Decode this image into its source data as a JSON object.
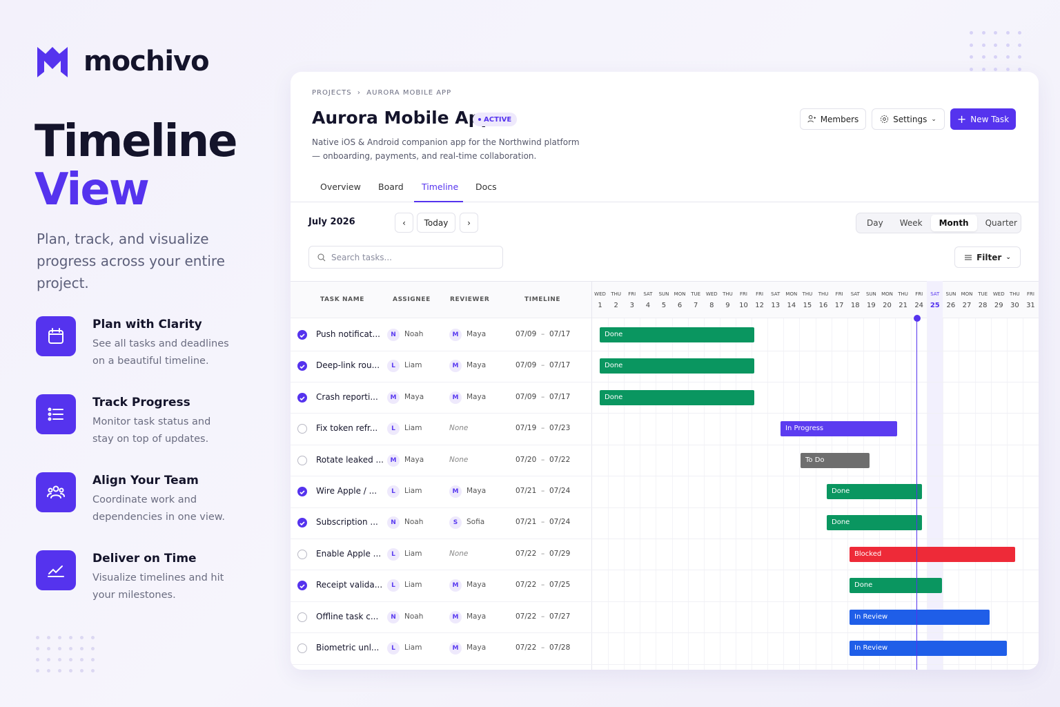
{
  "brand": {
    "name": "mochivo"
  },
  "hero": {
    "title_line1": "Timeline",
    "title_line2": "View",
    "subtitle": "Plan, track, and visualize progress across your entire project."
  },
  "features": [
    {
      "title": "Plan with Clarity",
      "description": "See all tasks and deadlines on a beautiful timeline."
    },
    {
      "title": "Track Progress",
      "description": "Monitor task status and stay on top of updates."
    },
    {
      "title": "Align Your Team",
      "description": "Coordinate work and dependencies in one view."
    },
    {
      "title": "Deliver on Time",
      "description": "Visualize timelines and hit your milestones."
    }
  ],
  "app": {
    "breadcrumb": [
      "PROJECTS",
      "AURORA MOBILE APP"
    ],
    "title": "Aurora Mobile App",
    "status": "ACTIVE",
    "description": "Native iOS & Android companion app for the Northwind platform — onboarding, payments, and real-time collaboration.",
    "buttons": [
      "Members",
      "Settings",
      "New Task"
    ],
    "tabs": [
      "Overview",
      "Board",
      "Timeline",
      "Docs"
    ],
    "month": "July 2026",
    "today": "Today",
    "views": [
      "Day",
      "Week",
      "Month",
      "Quarter"
    ],
    "search_placeholder": "Search tasks...",
    "filter": "Filter",
    "columns": [
      "TASK NAME",
      "ASSIGNEE",
      "REVIEWER",
      "TIMELINE"
    ],
    "days": [
      {
        "weekday": "WED",
        "day": 1
      },
      {
        "weekday": "THU",
        "day": 2
      },
      {
        "weekday": "FRI",
        "day": 3
      },
      {
        "weekday": "SAT",
        "day": 4
      },
      {
        "weekday": "SUN",
        "day": 5
      },
      {
        "weekday": "MON",
        "day": 6
      },
      {
        "weekday": "TUE",
        "day": 7
      },
      {
        "weekday": "WED",
        "day": 8
      },
      {
        "weekday": "THU",
        "day": 9
      },
      {
        "weekday": "FRI",
        "day": 10
      },
      {
        "weekday": "FRI",
        "day": 12
      },
      {
        "weekday": "SAT",
        "day": 13
      },
      {
        "weekday": "MON",
        "day": 14
      },
      {
        "weekday": "THU",
        "day": 15
      },
      {
        "weekday": "THU",
        "day": 16
      },
      {
        "weekday": "FRI",
        "day": 17
      },
      {
        "weekday": "SAT",
        "day": 18
      },
      {
        "weekday": "SUN",
        "day": 19
      },
      {
        "weekday": "MON",
        "day": 20
      },
      {
        "weekday": "THU",
        "day": 21
      },
      {
        "weekday": "FRI",
        "day": 24
      },
      {
        "weekday": "SAT",
        "day": 25
      },
      {
        "weekday": "SUN",
        "day": 26
      },
      {
        "weekday": "MON",
        "day": 27
      },
      {
        "weekday": "TUE",
        "day": 28
      },
      {
        "weekday": "WED",
        "day": 29
      },
      {
        "weekday": "THU",
        "day": 30
      },
      {
        "weekday": "FRI",
        "day": 31
      }
    ],
    "tasks": [
      {
        "name": "Push notificat...",
        "done": true,
        "assignee_initial": "N",
        "assignee": "Noah",
        "reviewer_initial": "M",
        "reviewer": "Maya",
        "start": "07/09",
        "end": "07/17",
        "status": "Done"
      },
      {
        "name": "Deep-link rou...",
        "done": true,
        "assignee_initial": "L",
        "assignee": "Liam",
        "reviewer_initial": "M",
        "reviewer": "Maya",
        "start": "07/09",
        "end": "07/17",
        "status": "Done"
      },
      {
        "name": "Crash reporti...",
        "done": true,
        "assignee_initial": "M",
        "assignee": "Maya",
        "reviewer_initial": "M",
        "reviewer": "Maya",
        "start": "07/09",
        "end": "07/17",
        "status": "Done"
      },
      {
        "name": "Fix token refr...",
        "done": false,
        "assignee_initial": "L",
        "assignee": "Liam",
        "reviewer": "None",
        "start": "07/19",
        "end": "07/23",
        "status": "In Progress"
      },
      {
        "name": "Rotate leaked ...",
        "done": false,
        "assignee_initial": "M",
        "assignee": "Maya",
        "reviewer": "None",
        "start": "07/20",
        "end": "07/22",
        "status": "To Do"
      },
      {
        "name": "Wire Apple / ...",
        "done": true,
        "assignee_initial": "L",
        "assignee": "Liam",
        "reviewer_initial": "M",
        "reviewer": "Maya",
        "start": "07/21",
        "end": "07/24",
        "status": "Done"
      },
      {
        "name": "Subscription ...",
        "done": true,
        "assignee_initial": "N",
        "assignee": "Noah",
        "reviewer_initial": "S",
        "reviewer": "Sofia",
        "start": "07/21",
        "end": "07/24",
        "status": "Done"
      },
      {
        "name": "Enable Apple ...",
        "done": false,
        "assignee_initial": "L",
        "assignee": "Liam",
        "reviewer": "None",
        "start": "07/22",
        "end": "07/29",
        "status": "Blocked"
      },
      {
        "name": "Receipt valida...",
        "done": true,
        "assignee_initial": "L",
        "assignee": "Liam",
        "reviewer_initial": "M",
        "reviewer": "Maya",
        "start": "07/22",
        "end": "07/25",
        "status": "Done"
      },
      {
        "name": "Offline task c...",
        "done": false,
        "assignee_initial": "N",
        "assignee": "Noah",
        "reviewer_initial": "M",
        "reviewer": "Maya",
        "start": "07/22",
        "end": "07/27",
        "status": "In Review"
      },
      {
        "name": "Biometric unl...",
        "done": false,
        "assignee_initial": "L",
        "assignee": "Liam",
        "reviewer_initial": "M",
        "reviewer": "Maya",
        "start": "07/22",
        "end": "07/28",
        "status": "In Review"
      }
    ]
  }
}
